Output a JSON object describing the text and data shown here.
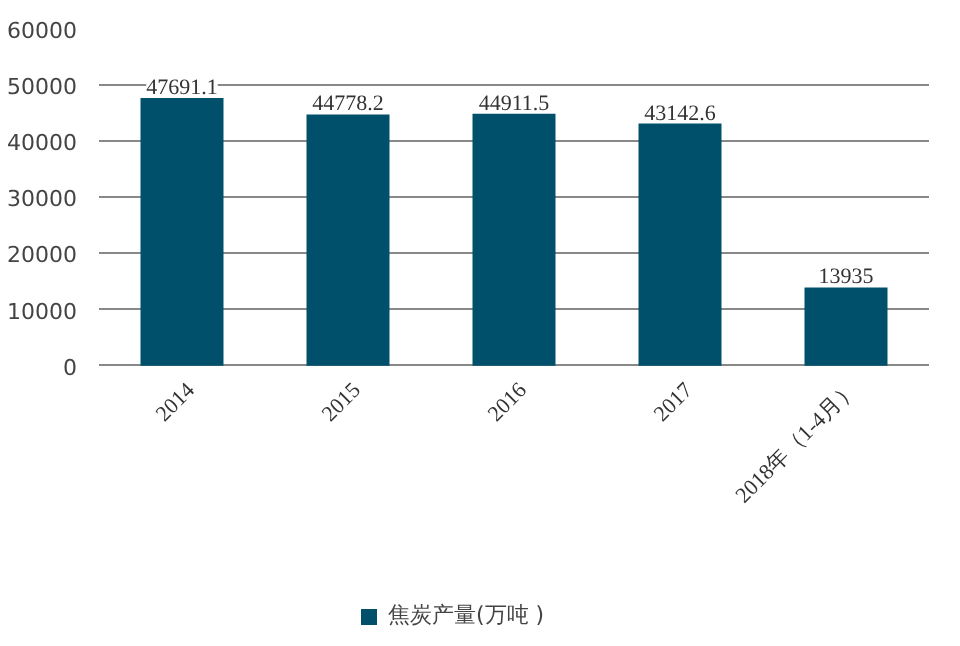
{
  "chart_data": {
    "type": "bar",
    "categories": [
      "2014",
      "2015",
      "2016",
      "2017",
      "2018年（1-4月）"
    ],
    "series": [
      {
        "name": "焦炭产量(万吨 )",
        "color": "#00506b",
        "values": [
          47691.1,
          44778.2,
          44911.5,
          43142.6,
          13935
        ]
      }
    ],
    "ylim": [
      0,
      60000
    ],
    "yticks": [
      0,
      10000,
      20000,
      30000,
      40000,
      50000,
      60000
    ],
    "grid": "y",
    "legend": "bottom",
    "data_labels": true
  }
}
